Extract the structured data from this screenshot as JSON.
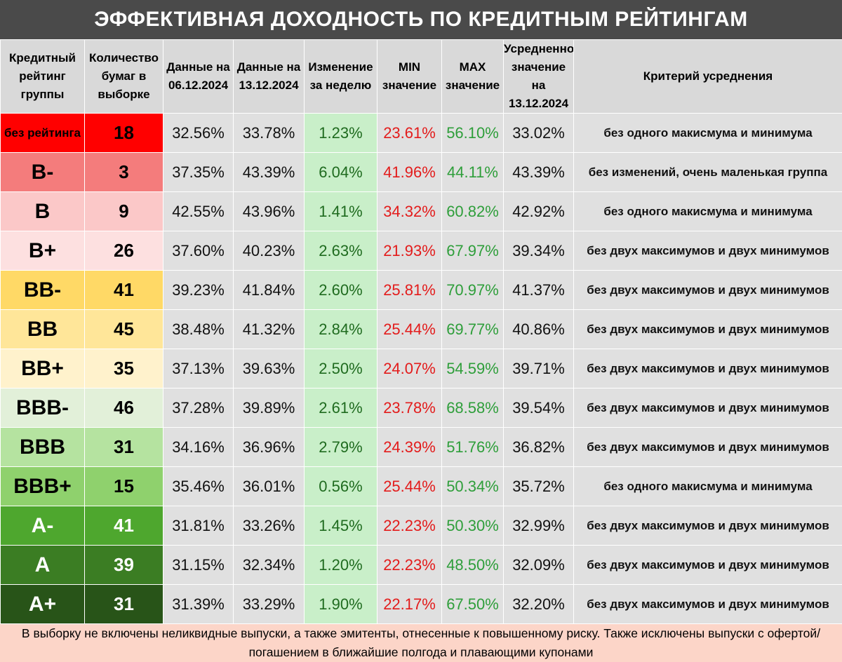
{
  "title": "ЭФФЕКТИВНАЯ ДОХОДНОСТЬ ПО КРЕДИТНЫМ РЕЙТИНГАМ",
  "headers": [
    "Кредитный рейтинг группы",
    "Количество бумаг в выборке",
    "Данные на 06.12.2024",
    "Данные на 13.12.2024",
    "Изменение за неделю",
    "MIN значение",
    "MAX значение",
    "Усредненное значение на 13.12.2024",
    "Критерий усреднения"
  ],
  "rows": [
    {
      "rating": "без рейтинга",
      "count": "18",
      "d1": "32.56%",
      "d2": "33.78%",
      "chg": "1.23%",
      "min": "23.61%",
      "max": "56.10%",
      "avg": "33.02%",
      "crit": "без одного макисмума и минимума",
      "rating_bg": "#ff0000",
      "count_bg": "#ff0000"
    },
    {
      "rating": "B-",
      "count": "3",
      "d1": "37.35%",
      "d2": "43.39%",
      "chg": "6.04%",
      "min": "41.96%",
      "max": "44.11%",
      "avg": "43.39%",
      "crit": "без изменений, очень маленькая группа",
      "rating_bg": "#f47c7c",
      "count_bg": "#f47c7c"
    },
    {
      "rating": "B",
      "count": "9",
      "d1": "42.55%",
      "d2": "43.96%",
      "chg": "1.41%",
      "min": "34.32%",
      "max": "60.82%",
      "avg": "42.92%",
      "crit": "без одного макисмума и минимума",
      "rating_bg": "#fbc8c8",
      "count_bg": "#fbc8c8"
    },
    {
      "rating": "B+",
      "count": "26",
      "d1": "37.60%",
      "d2": "40.23%",
      "chg": "2.63%",
      "min": "21.93%",
      "max": "67.97%",
      "avg": "39.34%",
      "crit": "без двух максимумов и двух минимумов",
      "rating_bg": "#fde0e0",
      "count_bg": "#fde0e0"
    },
    {
      "rating": "BB-",
      "count": "41",
      "d1": "39.23%",
      "d2": "41.84%",
      "chg": "2.60%",
      "min": "25.81%",
      "max": "70.97%",
      "avg": "41.37%",
      "crit": "без двух максимумов и двух минимумов",
      "rating_bg": "#ffd966",
      "count_bg": "#ffd966"
    },
    {
      "rating": "BB",
      "count": "45",
      "d1": "38.48%",
      "d2": "41.32%",
      "chg": "2.84%",
      "min": "25.44%",
      "max": "69.77%",
      "avg": "40.86%",
      "crit": "без двух максимумов и двух минимумов",
      "rating_bg": "#ffe699",
      "count_bg": "#ffe699"
    },
    {
      "rating": "BB+",
      "count": "35",
      "d1": "37.13%",
      "d2": "39.63%",
      "chg": "2.50%",
      "min": "24.07%",
      "max": "54.59%",
      "avg": "39.71%",
      "crit": "без двух максимумов и двух минимумов",
      "rating_bg": "#fff2cc",
      "count_bg": "#fff2cc"
    },
    {
      "rating": "BBB-",
      "count": "46",
      "d1": "37.28%",
      "d2": "39.89%",
      "chg": "2.61%",
      "min": "23.78%",
      "max": "68.58%",
      "avg": "39.54%",
      "crit": "без двух максимумов и двух минимумов",
      "rating_bg": "#e2f0d9",
      "count_bg": "#e2f0d9"
    },
    {
      "rating": "BBB",
      "count": "31",
      "d1": "34.16%",
      "d2": "36.96%",
      "chg": "2.79%",
      "min": "24.39%",
      "max": "51.76%",
      "avg": "36.82%",
      "crit": "без двух максимумов и двух минимумов",
      "rating_bg": "#b5e3a0",
      "count_bg": "#b5e3a0"
    },
    {
      "rating": "BBB+",
      "count": "15",
      "d1": "35.46%",
      "d2": "36.01%",
      "chg": "0.56%",
      "min": "25.44%",
      "max": "50.34%",
      "avg": "35.72%",
      "crit": "без одного макисмума и минимума",
      "rating_bg": "#8fd16d",
      "count_bg": "#8fd16d"
    },
    {
      "rating": "A-",
      "count": "41",
      "d1": "31.81%",
      "d2": "33.26%",
      "chg": "1.45%",
      "min": "22.23%",
      "max": "50.30%",
      "avg": "32.99%",
      "crit": "без двух максимумов и двух минимумов",
      "rating_bg": "#4ea72e",
      "count_bg": "#4ea72e"
    },
    {
      "rating": "A",
      "count": "39",
      "d1": "31.15%",
      "d2": "32.34%",
      "chg": "1.20%",
      "min": "22.23%",
      "max": "48.50%",
      "avg": "32.09%",
      "crit": "без двух максимумов и двух минимумов",
      "rating_bg": "#3b7d23",
      "count_bg": "#3b7d23"
    },
    {
      "rating": "A+",
      "count": "31",
      "d1": "31.39%",
      "d2": "33.29%",
      "chg": "1.90%",
      "min": "22.17%",
      "max": "67.50%",
      "avg": "32.20%",
      "crit": "без двух максимумов и двух минимумов",
      "rating_bg": "#285418",
      "count_bg": "#285418"
    }
  ],
  "footer": "В выборку не включены неликвидные выпуски, а также эмитенты, отнесенные к повышенному риску. Также исключены выпуски с офертой/погашением в ближайшие полгода и плавающими купонами"
}
